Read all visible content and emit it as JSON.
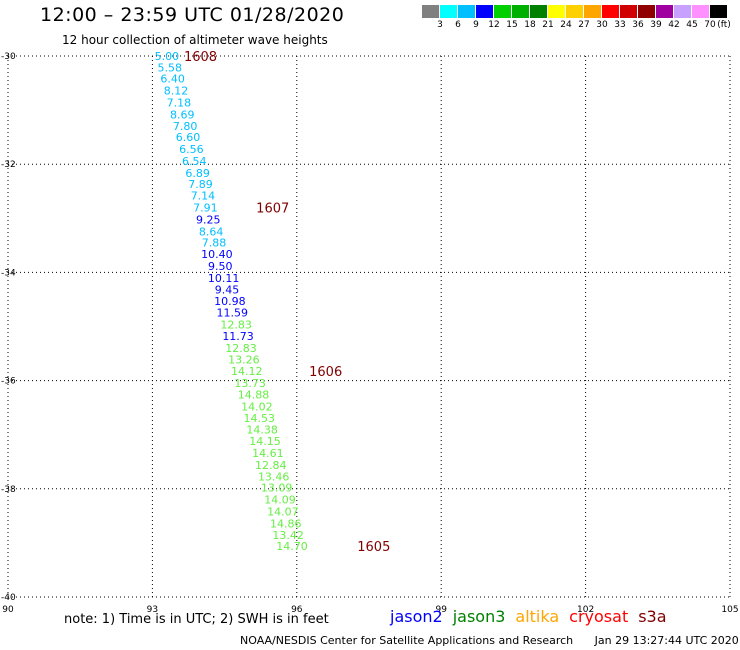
{
  "title": "12:00 – 23:59 UTC 01/28/2020",
  "subtitle": "12 hour collection of altimeter wave heights",
  "legend": {
    "colors": [
      "#808080",
      "#00ffff",
      "#00bfff",
      "#0000ff",
      "#00d000",
      "#00b000",
      "#008000",
      "#ffff00",
      "#ffd000",
      "#ffa500",
      "#ff0000",
      "#d00000",
      "#900000",
      "#a000a0",
      "#c8a0ff",
      "#ff90ff",
      "#000000"
    ],
    "labels": [
      "3",
      "6",
      "9",
      "12",
      "15",
      "18",
      "21",
      "24",
      "27",
      "30",
      "33",
      "36",
      "39",
      "42",
      "45",
      "70"
    ],
    "unit": "(ft)"
  },
  "axes": {
    "x_ticks": [
      "90",
      "93",
      "96",
      "99",
      "102",
      "105"
    ],
    "y_ticks": [
      "-30",
      "-32",
      "-34",
      "-36",
      "-38",
      "-40"
    ]
  },
  "observations": [
    {
      "v": "5.00",
      "lon": 93.3,
      "lat": -30.0,
      "c": "#00bfff"
    },
    {
      "v": "5.58",
      "lon": 93.36,
      "lat": -30.21,
      "c": "#00bfff"
    },
    {
      "v": "6.40",
      "lon": 93.42,
      "lat": -30.42,
      "c": "#00bfff"
    },
    {
      "v": "8.12",
      "lon": 93.49,
      "lat": -30.64,
      "c": "#00bfff"
    },
    {
      "v": "7.18",
      "lon": 93.55,
      "lat": -30.86,
      "c": "#00bfff"
    },
    {
      "v": "8.69",
      "lon": 93.62,
      "lat": -31.08,
      "c": "#00bfff"
    },
    {
      "v": "7.80",
      "lon": 93.68,
      "lat": -31.29,
      "c": "#00bfff"
    },
    {
      "v": "6.60",
      "lon": 93.74,
      "lat": -31.5,
      "c": "#00bfff"
    },
    {
      "v": "6.56",
      "lon": 93.81,
      "lat": -31.72,
      "c": "#00bfff"
    },
    {
      "v": "6.54",
      "lon": 93.87,
      "lat": -31.94,
      "c": "#00bfff"
    },
    {
      "v": "6.89",
      "lon": 93.94,
      "lat": -32.16,
      "c": "#00bfff"
    },
    {
      "v": "7.89",
      "lon": 94.0,
      "lat": -32.37,
      "c": "#00bfff"
    },
    {
      "v": "7.14",
      "lon": 94.05,
      "lat": -32.58,
      "c": "#00bfff"
    },
    {
      "v": "7.91",
      "lon": 94.1,
      "lat": -32.8,
      "c": "#00bfff"
    },
    {
      "v": "9.25",
      "lon": 94.16,
      "lat": -33.02,
      "c": "#0000ff"
    },
    {
      "v": "8.64",
      "lon": 94.22,
      "lat": -33.24,
      "c": "#00bfff"
    },
    {
      "v": "7.88",
      "lon": 94.28,
      "lat": -33.45,
      "c": "#00bfff"
    },
    {
      "v": "10.40",
      "lon": 94.34,
      "lat": -33.66,
      "c": "#0000ff"
    },
    {
      "v": "9.50",
      "lon": 94.41,
      "lat": -33.88,
      "c": "#0000ff"
    },
    {
      "v": "10.11",
      "lon": 94.48,
      "lat": -34.1,
      "c": "#0000ff"
    },
    {
      "v": "9.45",
      "lon": 94.55,
      "lat": -34.32,
      "c": "#0000ff"
    },
    {
      "v": "10.98",
      "lon": 94.61,
      "lat": -34.53,
      "c": "#0000ff"
    },
    {
      "v": "11.59",
      "lon": 94.66,
      "lat": -34.74,
      "c": "#0000ff"
    },
    {
      "v": "12.83",
      "lon": 94.74,
      "lat": -34.96,
      "c": "#66ee44"
    },
    {
      "v": "11.73",
      "lon": 94.78,
      "lat": -35.18,
      "c": "#0000ff"
    },
    {
      "v": "12.83",
      "lon": 94.84,
      "lat": -35.4,
      "c": "#66ee44"
    },
    {
      "v": "13.26",
      "lon": 94.9,
      "lat": -35.61,
      "c": "#66ee44"
    },
    {
      "v": "14.12",
      "lon": 94.96,
      "lat": -35.82,
      "c": "#66ee44"
    },
    {
      "v": "13.73",
      "lon": 95.03,
      "lat": -36.04,
      "c": "#66ee44"
    },
    {
      "v": "14.88",
      "lon": 95.1,
      "lat": -36.26,
      "c": "#66ee44"
    },
    {
      "v": "14.02",
      "lon": 95.17,
      "lat": -36.48,
      "c": "#66ee44"
    },
    {
      "v": "14.53",
      "lon": 95.22,
      "lat": -36.69,
      "c": "#66ee44"
    },
    {
      "v": "14.38",
      "lon": 95.28,
      "lat": -36.9,
      "c": "#66ee44"
    },
    {
      "v": "14.15",
      "lon": 95.34,
      "lat": -37.12,
      "c": "#66ee44"
    },
    {
      "v": "14.61",
      "lon": 95.4,
      "lat": -37.34,
      "c": "#66ee44"
    },
    {
      "v": "12.84",
      "lon": 95.46,
      "lat": -37.56,
      "c": "#66ee44"
    },
    {
      "v": "13.46",
      "lon": 95.52,
      "lat": -37.77,
      "c": "#66ee44"
    },
    {
      "v": "13.09",
      "lon": 95.58,
      "lat": -37.98,
      "c": "#66ee44"
    },
    {
      "v": "14.09",
      "lon": 95.65,
      "lat": -38.2,
      "c": "#66ee44"
    },
    {
      "v": "14.07",
      "lon": 95.71,
      "lat": -38.42,
      "c": "#66ee44"
    },
    {
      "v": "14.86",
      "lon": 95.77,
      "lat": -38.64,
      "c": "#66ee44"
    },
    {
      "v": "13.42",
      "lon": 95.82,
      "lat": -38.85,
      "c": "#66ee44"
    },
    {
      "v": "14.70",
      "lon": 95.9,
      "lat": -39.06,
      "c": "#66ee44"
    }
  ],
  "time_labels": [
    {
      "t": "1608",
      "lon": 94.0,
      "lat": -30.0
    },
    {
      "t": "1607",
      "lon": 95.5,
      "lat": -32.8
    },
    {
      "t": "1606",
      "lon": 96.6,
      "lat": -35.82
    },
    {
      "t": "1605",
      "lon": 97.6,
      "lat": -39.06
    }
  ],
  "time_label_color": "#800000",
  "note": "note:  1) Time is in UTC;  2) SWH is in feet",
  "satellites": [
    {
      "name": "jason2",
      "color": "#0000ff"
    },
    {
      "name": "jason3",
      "color": "#008000"
    },
    {
      "name": "altika",
      "color": "#ffa500"
    },
    {
      "name": "cryosat",
      "color": "#ff0000"
    },
    {
      "name": "s3a",
      "color": "#800000"
    }
  ],
  "footer": {
    "org": "NOAA/NESDIS Center for Satellite Applications and Research",
    "timestamp": "Jan 29 13:27:44 UTC 2020"
  }
}
